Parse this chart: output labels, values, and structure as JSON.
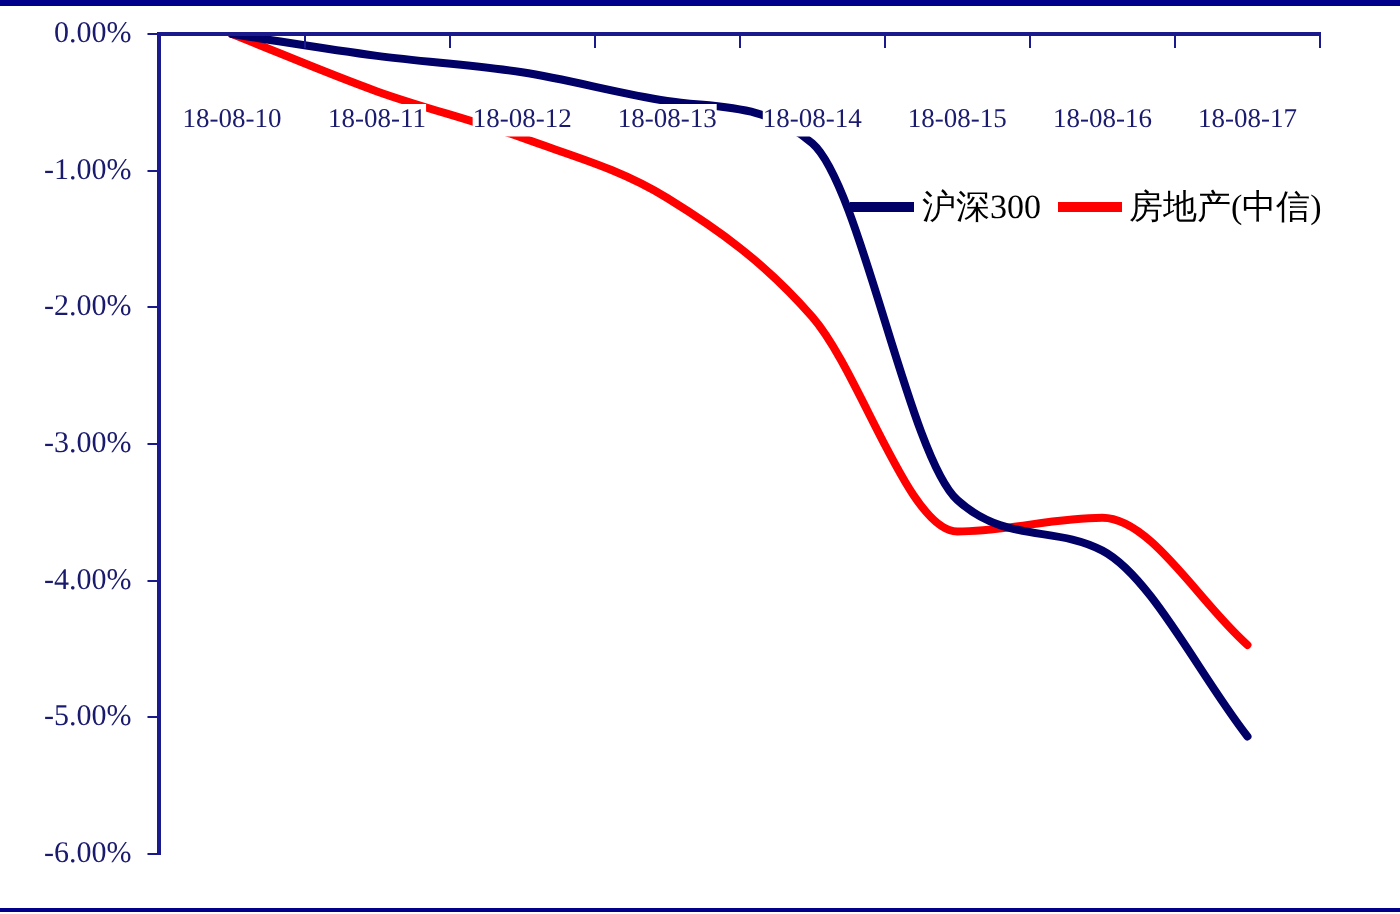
{
  "chart_data": {
    "type": "line",
    "categories": [
      "18-08-10",
      "18-08-11",
      "18-08-12",
      "18-08-13",
      "18-08-14",
      "18-08-15",
      "18-08-16",
      "18-08-17"
    ],
    "series": [
      {
        "name": "沪深300",
        "color": "#000066",
        "values": [
          0,
          -0.16,
          -0.28,
          -0.49,
          -0.8,
          -3.41,
          -3.78,
          -5.14
        ]
      },
      {
        "name": "房地产(中信)",
        "color": "#ff0000",
        "values": [
          0,
          -0.42,
          -0.76,
          -1.2,
          -2.07,
          -3.64,
          -3.54,
          -4.47
        ]
      }
    ],
    "ylim": [
      -6,
      0
    ],
    "yticks": [
      {
        "value": 0,
        "label": "0.00%"
      },
      {
        "value": -1,
        "label": "-1.00%"
      },
      {
        "value": -2,
        "label": "-2.00%"
      },
      {
        "value": -3,
        "label": "-3.00%"
      },
      {
        "value": -4,
        "label": "-4.00%"
      },
      {
        "value": -5,
        "label": "-5.00%"
      },
      {
        "value": -6,
        "label": "-6.00%"
      }
    ],
    "grid": false,
    "legend": "right",
    "marker": "none",
    "line_style": "solid"
  }
}
